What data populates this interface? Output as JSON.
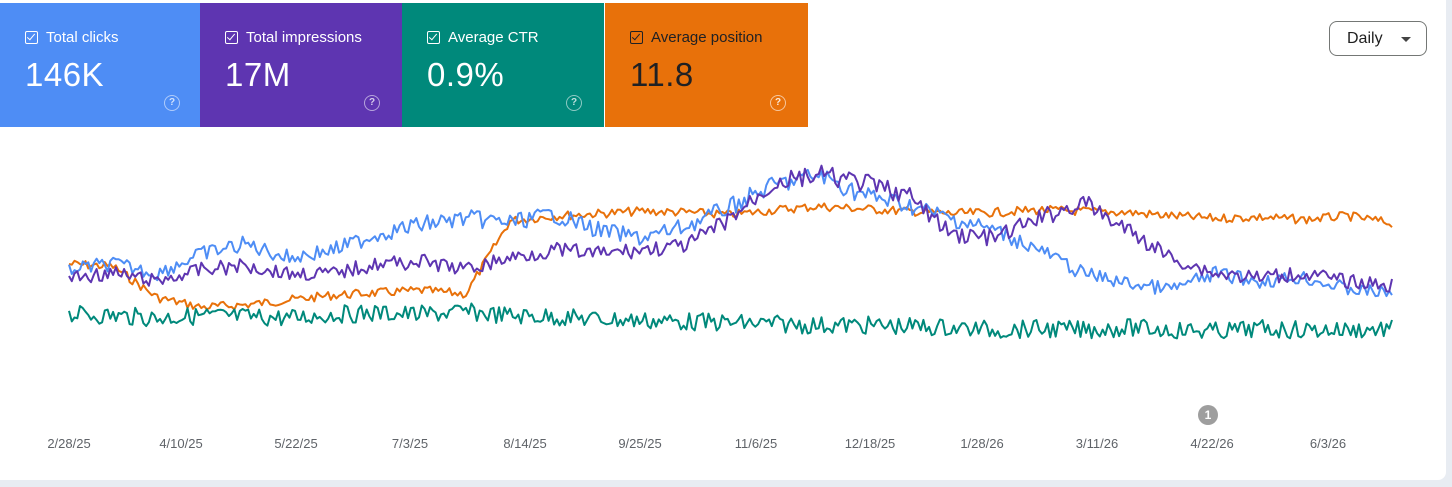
{
  "metrics": [
    {
      "label": "Total clicks",
      "value": "146K",
      "color": "#4e8df5",
      "checked": true
    },
    {
      "label": "Total impressions",
      "value": "17M",
      "color": "#5e35b1",
      "checked": true
    },
    {
      "label": "Average CTR",
      "value": "0.9%",
      "color": "#00897b",
      "checked": true
    },
    {
      "label": "Average position",
      "value": "11.8",
      "color": "#e8710a",
      "checked": true
    }
  ],
  "help_glyph": "?",
  "granularity": {
    "selected": "Daily"
  },
  "annotation_marker": {
    "label": "1",
    "date": "4/22/26"
  },
  "chart_data": {
    "type": "line",
    "x_tick_labels": [
      "2/28/25",
      "4/10/25",
      "5/22/25",
      "7/3/25",
      "8/14/25",
      "9/25/25",
      "11/6/25",
      "12/18/25",
      "1/28/26",
      "3/11/26",
      "4/22/26",
      "6/3/26"
    ],
    "x_range": [
      "2/28/25",
      "6/30/26"
    ],
    "grid": false,
    "y_axes_visible": false,
    "series": [
      {
        "name": "Total clicks",
        "color": "#4e8df5",
        "values": [
          0.52,
          0.55,
          0.5,
          0.6,
          0.65,
          0.58,
          0.62,
          0.7,
          0.75,
          0.78,
          0.76,
          0.8,
          0.72,
          0.68,
          0.74,
          0.84,
          0.95,
          1.0,
          0.9,
          0.85,
          0.78,
          0.72,
          0.62,
          0.5,
          0.45,
          0.42,
          0.5,
          0.46,
          0.48,
          0.42,
          0.4
        ]
      },
      {
        "name": "Total impressions",
        "color": "#5e35b1",
        "values": [
          0.48,
          0.5,
          0.46,
          0.52,
          0.54,
          0.5,
          0.5,
          0.55,
          0.56,
          0.52,
          0.58,
          0.62,
          0.6,
          0.62,
          0.64,
          0.78,
          0.96,
          1.0,
          0.96,
          0.9,
          0.7,
          0.68,
          0.78,
          0.86,
          0.72,
          0.58,
          0.5,
          0.48,
          0.5,
          0.46,
          0.44
        ]
      },
      {
        "name": "Average CTR",
        "color": "#00897b",
        "values": [
          0.76,
          0.74,
          0.7,
          0.74,
          0.72,
          0.7,
          0.76,
          0.78,
          0.76,
          0.8,
          0.74,
          0.72,
          0.68,
          0.66,
          0.64,
          0.62,
          0.6,
          0.58,
          0.58,
          0.56,
          0.54,
          0.5,
          0.52,
          0.5,
          0.54,
          0.5,
          0.48,
          0.52,
          0.5,
          0.5,
          0.52
        ]
      },
      {
        "name": "Average position",
        "color": "#e8710a",
        "values": [
          12.0,
          12.2,
          14.8,
          15.6,
          15.4,
          15.0,
          14.6,
          14.4,
          14.2,
          14.5,
          8.4,
          8.0,
          7.8,
          7.6,
          7.7,
          7.9,
          7.5,
          7.2,
          7.4,
          7.6,
          7.8,
          7.7,
          7.5,
          7.6,
          7.7,
          8.0,
          8.2,
          8.1,
          8.3,
          8.0,
          8.6
        ]
      }
    ]
  }
}
